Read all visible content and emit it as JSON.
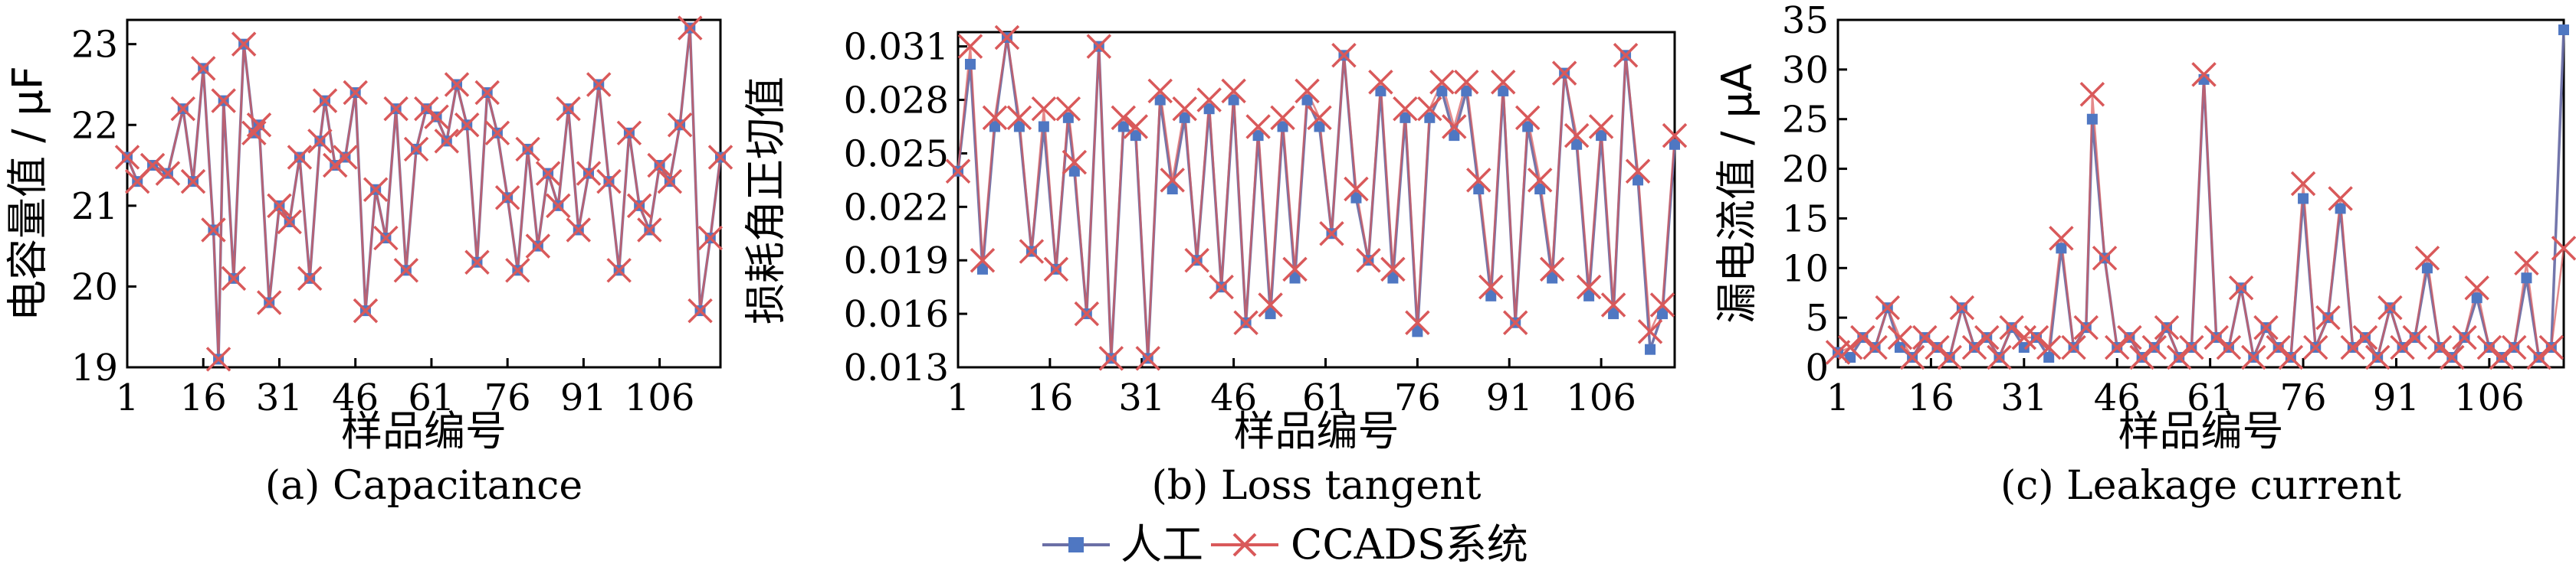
{
  "legend": {
    "manual_label": "人工",
    "system_label": "CCADS系统",
    "manual_color": "#6b6fa6",
    "manual_marker_color": "#4f77c2",
    "system_color": "#d9595a",
    "placement": "bottom-center"
  },
  "chart_data": [
    {
      "type": "line",
      "subtitle": "(a) Capacitance",
      "xlabel": "样品编号",
      "ylabel": "电容量值 / μF",
      "xticks": [
        1,
        16,
        31,
        46,
        61,
        76,
        91,
        106
      ],
      "yticks": [
        19,
        20,
        21,
        22,
        23
      ],
      "ylim": [
        19,
        23.3
      ],
      "xlim": [
        1,
        118
      ],
      "grid": false,
      "series": [
        {
          "name": "人工",
          "x": [
            1,
            3,
            6,
            9,
            12,
            14,
            16,
            18,
            19,
            20,
            22,
            24,
            26,
            27,
            29,
            31,
            33,
            35,
            37,
            39,
            40,
            42,
            44,
            46,
            48,
            50,
            52,
            54,
            56,
            58,
            60,
            62,
            64,
            66,
            68,
            70,
            72,
            74,
            76,
            78,
            80,
            82,
            84,
            86,
            88,
            90,
            92,
            94,
            96,
            98,
            100,
            102,
            104,
            106,
            108,
            110,
            112,
            114,
            116,
            118
          ],
          "y": [
            21.6,
            21.3,
            21.5,
            21.4,
            22.2,
            21.3,
            22.7,
            20.7,
            19.1,
            22.3,
            20.1,
            23.0,
            21.9,
            22.0,
            19.8,
            21.0,
            20.8,
            21.6,
            20.1,
            21.8,
            22.3,
            21.5,
            21.6,
            22.4,
            19.7,
            21.2,
            20.6,
            22.2,
            20.2,
            21.7,
            22.2,
            22.1,
            21.8,
            22.5,
            22.0,
            20.3,
            22.4,
            21.9,
            21.1,
            20.2,
            21.7,
            20.5,
            21.4,
            21.0,
            22.2,
            20.7,
            21.4,
            22.5,
            21.3,
            20.2,
            21.9,
            21.0,
            20.7,
            21.5,
            21.3,
            22.0,
            23.2,
            19.7,
            20.6,
            21.6
          ]
        },
        {
          "name": "CCADS系统",
          "x": [
            1,
            3,
            6,
            9,
            12,
            14,
            16,
            18,
            19,
            20,
            22,
            24,
            26,
            27,
            29,
            31,
            33,
            35,
            37,
            39,
            40,
            42,
            44,
            46,
            48,
            50,
            52,
            54,
            56,
            58,
            60,
            62,
            64,
            66,
            68,
            70,
            72,
            74,
            76,
            78,
            80,
            82,
            84,
            86,
            88,
            90,
            92,
            94,
            96,
            98,
            100,
            102,
            104,
            106,
            108,
            110,
            112,
            114,
            116,
            118
          ],
          "y": [
            21.6,
            21.3,
            21.5,
            21.4,
            22.2,
            21.3,
            22.7,
            20.7,
            19.1,
            22.3,
            20.1,
            23.0,
            21.9,
            22.0,
            19.8,
            21.0,
            20.8,
            21.6,
            20.1,
            21.8,
            22.3,
            21.5,
            21.6,
            22.4,
            19.7,
            21.2,
            20.6,
            22.2,
            20.2,
            21.7,
            22.2,
            22.1,
            21.8,
            22.5,
            22.0,
            20.3,
            22.4,
            21.9,
            21.1,
            20.2,
            21.7,
            20.5,
            21.4,
            21.0,
            22.2,
            20.7,
            21.4,
            22.5,
            21.3,
            20.2,
            21.9,
            21.0,
            20.7,
            21.5,
            21.3,
            22.0,
            23.2,
            19.7,
            20.6,
            21.6
          ]
        }
      ]
    },
    {
      "type": "line",
      "subtitle": "(b) Loss tangent",
      "xlabel": "样品编号",
      "ylabel": "损耗角正切值",
      "xticks": [
        1,
        16,
        31,
        46,
        61,
        76,
        91,
        106
      ],
      "yticks": [
        0.013,
        0.016,
        0.019,
        0.022,
        0.025,
        0.028,
        0.031
      ],
      "ylim": [
        0.013,
        0.0318
      ],
      "xlim": [
        1,
        118
      ],
      "grid": false,
      "series": [
        {
          "name": "人工",
          "x": [
            1,
            3,
            5,
            7,
            9,
            11,
            13,
            15,
            17,
            19,
            20,
            22,
            24,
            26,
            28,
            30,
            32,
            34,
            36,
            38,
            40,
            42,
            44,
            46,
            48,
            50,
            52,
            54,
            56,
            58,
            60,
            62,
            64,
            66,
            68,
            70,
            72,
            74,
            76,
            78,
            80,
            82,
            84,
            86,
            88,
            90,
            92,
            94,
            96,
            98,
            100,
            102,
            104,
            106,
            108,
            110,
            112,
            114,
            116,
            118
          ],
          "y": [
            0.024,
            0.03,
            0.0185,
            0.0265,
            0.0315,
            0.0265,
            0.0195,
            0.0265,
            0.0185,
            0.027,
            0.024,
            0.016,
            0.031,
            0.0135,
            0.0265,
            0.026,
            0.0135,
            0.028,
            0.023,
            0.027,
            0.019,
            0.0275,
            0.0175,
            0.028,
            0.0155,
            0.026,
            0.016,
            0.0265,
            0.018,
            0.028,
            0.0265,
            0.0205,
            0.0305,
            0.0225,
            0.019,
            0.0285,
            0.018,
            0.027,
            0.015,
            0.027,
            0.0285,
            0.026,
            0.0285,
            0.023,
            0.017,
            0.0285,
            0.0155,
            0.0265,
            0.023,
            0.018,
            0.0295,
            0.0255,
            0.017,
            0.026,
            0.016,
            0.0305,
            0.0235,
            0.014,
            0.016,
            0.0255
          ]
        },
        {
          "name": "CCADS系统",
          "x": [
            1,
            3,
            5,
            7,
            9,
            11,
            13,
            15,
            17,
            19,
            20,
            22,
            24,
            26,
            28,
            30,
            32,
            34,
            36,
            38,
            40,
            42,
            44,
            46,
            48,
            50,
            52,
            54,
            56,
            58,
            60,
            62,
            64,
            66,
            68,
            70,
            72,
            74,
            76,
            78,
            80,
            82,
            84,
            86,
            88,
            90,
            92,
            94,
            96,
            98,
            100,
            102,
            104,
            106,
            108,
            110,
            112,
            114,
            116,
            118
          ],
          "y": [
            0.024,
            0.031,
            0.019,
            0.027,
            0.0315,
            0.027,
            0.0195,
            0.0275,
            0.0185,
            0.0275,
            0.0245,
            0.016,
            0.031,
            0.0135,
            0.027,
            0.0265,
            0.0135,
            0.0285,
            0.0235,
            0.0275,
            0.019,
            0.028,
            0.0175,
            0.0285,
            0.0155,
            0.0265,
            0.0165,
            0.027,
            0.0185,
            0.0285,
            0.027,
            0.0205,
            0.0305,
            0.023,
            0.019,
            0.029,
            0.0185,
            0.0275,
            0.0155,
            0.0275,
            0.029,
            0.0265,
            0.029,
            0.0235,
            0.0175,
            0.029,
            0.0155,
            0.027,
            0.0235,
            0.0185,
            0.0295,
            0.026,
            0.0175,
            0.0265,
            0.0165,
            0.0305,
            0.024,
            0.015,
            0.0165,
            0.026
          ]
        }
      ]
    },
    {
      "type": "line",
      "subtitle": "(c) Leakage current",
      "xlabel": "样品编号",
      "ylabel": "漏电流值 / μA",
      "xticks": [
        1,
        16,
        31,
        46,
        61,
        76,
        91,
        106
      ],
      "yticks": [
        0,
        5,
        10,
        15,
        20,
        25,
        30,
        35
      ],
      "ylim": [
        0,
        35
      ],
      "xlim": [
        1,
        118
      ],
      "grid": false,
      "series": [
        {
          "name": "人工",
          "x": [
            1,
            3,
            5,
            7,
            9,
            11,
            13,
            15,
            17,
            19,
            21,
            23,
            25,
            27,
            29,
            31,
            33,
            35,
            37,
            39,
            41,
            42,
            44,
            46,
            48,
            50,
            52,
            54,
            56,
            58,
            60,
            62,
            64,
            66,
            68,
            70,
            72,
            74,
            76,
            78,
            80,
            82,
            84,
            86,
            88,
            90,
            92,
            94,
            96,
            98,
            100,
            102,
            104,
            106,
            108,
            110,
            112,
            114,
            116,
            118
          ],
          "y": [
            1.5,
            1,
            3,
            2,
            6,
            2,
            1,
            3,
            2,
            1,
            6,
            2,
            3,
            1,
            4,
            2,
            3,
            1,
            12,
            2,
            4,
            25,
            11,
            2,
            3,
            1,
            2,
            4,
            1,
            2,
            29,
            3,
            2,
            8,
            1,
            4,
            2,
            1,
            17,
            2,
            5,
            16,
            2,
            3,
            1,
            6,
            2,
            3,
            10,
            2,
            1,
            3,
            7,
            2,
            1,
            2,
            9,
            1,
            2,
            34
          ]
        },
        {
          "name": "CCADS系统",
          "x": [
            1,
            3,
            5,
            7,
            9,
            11,
            13,
            15,
            17,
            19,
            21,
            23,
            25,
            27,
            29,
            31,
            33,
            35,
            37,
            39,
            41,
            42,
            44,
            46,
            48,
            50,
            52,
            54,
            56,
            58,
            60,
            62,
            64,
            66,
            68,
            70,
            72,
            74,
            76,
            78,
            80,
            82,
            84,
            86,
            88,
            90,
            92,
            94,
            96,
            98,
            100,
            102,
            104,
            106,
            108,
            110,
            112,
            114,
            116,
            118
          ],
          "y": [
            1.5,
            2,
            3,
            2,
            6,
            3,
            1,
            3,
            2,
            1,
            6,
            2,
            3,
            1,
            4,
            3,
            3,
            2,
            13,
            2,
            4,
            27.5,
            11,
            2,
            3,
            1,
            2,
            4,
            1,
            2,
            29.5,
            3,
            2,
            8,
            1,
            4,
            2,
            1,
            18.5,
            2,
            5,
            17,
            2,
            3,
            1,
            6,
            2,
            3,
            11,
            2,
            1,
            3,
            8,
            2,
            1,
            2,
            10.5,
            1,
            2,
            12
          ]
        }
      ]
    }
  ]
}
